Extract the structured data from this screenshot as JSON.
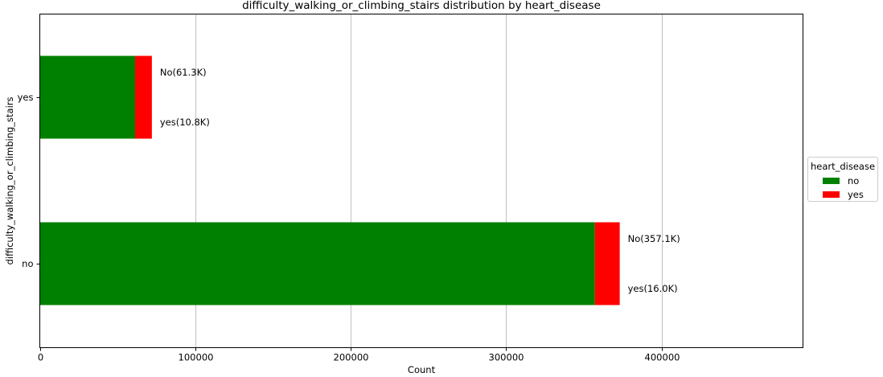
{
  "chart_data": {
    "type": "bar",
    "orientation": "horizontal",
    "stacked": true,
    "title": "difficulty_walking_or_climbing_stairs distribution by heart_disease",
    "xlabel": "Count",
    "ylabel": "difficulty_walking_or_climbing_stairs",
    "categories": [
      "no",
      "yes"
    ],
    "series": [
      {
        "name": "no",
        "color": "#008000",
        "values": [
          357100,
          61300
        ]
      },
      {
        "name": "yes",
        "color": "#ff0000",
        "values": [
          16000,
          10800
        ]
      }
    ],
    "bar_labels": [
      {
        "category": "no",
        "labels": [
          "No(357.1K)",
          "yes(16.0K)"
        ]
      },
      {
        "category": "yes",
        "labels": [
          "No(61.3K)",
          "yes(10.8K)"
        ]
      }
    ],
    "xlim": [
      0,
      491000
    ],
    "xticks": [
      0,
      100000,
      200000,
      300000,
      400000
    ],
    "xtick_labels": [
      "0",
      "100000",
      "200000",
      "300000",
      "400000"
    ],
    "grid": "vertical",
    "legend": {
      "title": "heart_disease",
      "placement": "right",
      "entries": [
        "no",
        "yes"
      ]
    }
  }
}
